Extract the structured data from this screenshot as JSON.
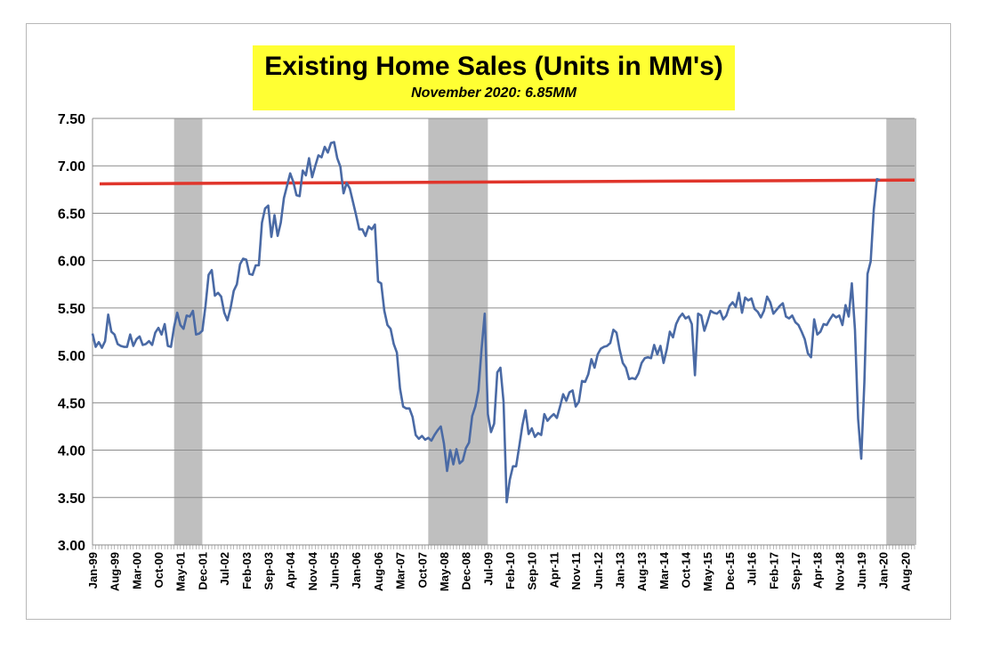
{
  "chart_data": {
    "type": "line",
    "title": "Existing Home Sales (Units in MM's)",
    "subtitle": "November 2020: 6.85MM",
    "xlabel": "",
    "ylabel": "",
    "ylim": [
      3.0,
      7.5
    ],
    "yticks": [
      "3.00",
      "3.50",
      "4.00",
      "4.50",
      "5.00",
      "5.50",
      "6.00",
      "6.50",
      "7.00",
      "7.50"
    ],
    "x_start": "Jan-99",
    "x_end": "Nov-20",
    "xtick_labels": [
      "Jan-99",
      "Aug-99",
      "Mar-00",
      "Oct-00",
      "May-01",
      "Dec-01",
      "Jul-02",
      "Feb-03",
      "Sep-03",
      "Apr-04",
      "Nov-04",
      "Jun-05",
      "Jan-06",
      "Aug-06",
      "Mar-07",
      "Oct-07",
      "May-08",
      "Dec-08",
      "Jul-09",
      "Feb-10",
      "Sep-10",
      "Apr-11",
      "Nov-11",
      "Jun-12",
      "Jan-13",
      "Aug-13",
      "Mar-14",
      "Oct-14",
      "May-15",
      "Dec-15",
      "Jul-16",
      "Feb-17",
      "Sep-17",
      "Apr-18",
      "Nov-18",
      "Jun-19",
      "Jan-20",
      "Aug-20"
    ],
    "recession_bands": [
      {
        "start": "Mar-01",
        "end": "Nov-01"
      },
      {
        "start": "Dec-07",
        "end": "Jun-09"
      },
      {
        "start": "Feb-20",
        "end": "Nov-20"
      }
    ],
    "reference_line": {
      "start_value": 6.81,
      "end_value": 6.85,
      "color": "#e0352b"
    },
    "grid": true,
    "series": [
      {
        "color": "#4a6aa5",
        "values": [
          5.23,
          5.09,
          5.14,
          5.08,
          5.15,
          5.43,
          5.25,
          5.22,
          5.12,
          5.1,
          5.09,
          5.09,
          5.22,
          5.1,
          5.17,
          5.2,
          5.11,
          5.12,
          5.15,
          5.11,
          5.24,
          5.29,
          5.22,
          5.33,
          5.1,
          5.09,
          5.3,
          5.45,
          5.32,
          5.28,
          5.42,
          5.41,
          5.47,
          5.22,
          5.23,
          5.26,
          5.52,
          5.85,
          5.9,
          5.63,
          5.66,
          5.62,
          5.45,
          5.37,
          5.5,
          5.68,
          5.75,
          5.96,
          6.02,
          6.01,
          5.86,
          5.85,
          5.95,
          5.95,
          6.4,
          6.55,
          6.58,
          6.25,
          6.48,
          6.26,
          6.4,
          6.66,
          6.79,
          6.92,
          6.83,
          6.69,
          6.68,
          6.95,
          6.9,
          7.08,
          6.88,
          7.0,
          7.11,
          7.09,
          7.2,
          7.14,
          7.24,
          7.25,
          7.08,
          6.99,
          6.71,
          6.82,
          6.76,
          6.62,
          6.48,
          6.33,
          6.33,
          6.26,
          6.36,
          6.33,
          6.38,
          5.78,
          5.76,
          5.47,
          5.32,
          5.28,
          5.12,
          5.03,
          4.65,
          4.46,
          4.44,
          4.44,
          4.35,
          4.16,
          4.12,
          4.15,
          4.11,
          4.13,
          4.1,
          4.16,
          4.21,
          4.25,
          4.07,
          3.78,
          4.0,
          3.85,
          4.01,
          3.86,
          3.89,
          4.02,
          4.08,
          4.36,
          4.46,
          4.63,
          5.07,
          5.44,
          4.38,
          4.19,
          4.28,
          4.82,
          4.87,
          4.51,
          3.45,
          3.69,
          3.83,
          3.83,
          4.04,
          4.26,
          4.42,
          4.17,
          4.23,
          4.14,
          4.18,
          4.16,
          4.38,
          4.31,
          4.35,
          4.38,
          4.34,
          4.46,
          4.59,
          4.52,
          4.61,
          4.63,
          4.46,
          4.51,
          4.73,
          4.72,
          4.8,
          4.96,
          4.87,
          5.01,
          5.07,
          5.09,
          5.1,
          5.13,
          5.27,
          5.24,
          5.06,
          4.92,
          4.87,
          4.75,
          4.76,
          4.75,
          4.81,
          4.92,
          4.97,
          4.98,
          4.97,
          5.11,
          5.01,
          5.1,
          4.92,
          5.06,
          5.25,
          5.19,
          5.33,
          5.4,
          5.44,
          5.39,
          5.41,
          5.33,
          4.79,
          5.44,
          5.42,
          5.26,
          5.36,
          5.47,
          5.45,
          5.44,
          5.47,
          5.38,
          5.42,
          5.52,
          5.56,
          5.51,
          5.66,
          5.45,
          5.61,
          5.58,
          5.6,
          5.49,
          5.46,
          5.4,
          5.47,
          5.62,
          5.56,
          5.44,
          5.48,
          5.52,
          5.55,
          5.41,
          5.39,
          5.42,
          5.35,
          5.32,
          5.25,
          5.17,
          5.02,
          4.98,
          5.38,
          5.22,
          5.25,
          5.33,
          5.32,
          5.38,
          5.43,
          5.4,
          5.42,
          5.32,
          5.53,
          5.41,
          5.76,
          5.27,
          4.33,
          3.91,
          4.72,
          5.86,
          5.99,
          6.54,
          6.86,
          6.85
        ]
      }
    ]
  }
}
